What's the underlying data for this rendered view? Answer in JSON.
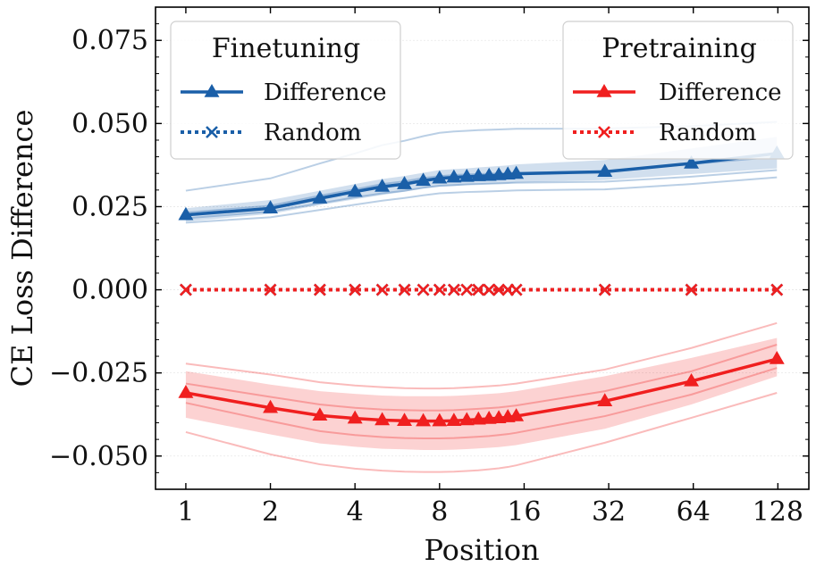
{
  "chart_data": {
    "type": "line",
    "xlabel": "Position",
    "ylabel": "CE Loss Difference",
    "x_scale": "log2",
    "xlim": [
      0.78,
      165
    ],
    "ylim": [
      -0.06,
      0.085
    ],
    "x_tick_values": [
      1,
      2,
      4,
      8,
      16,
      32,
      64,
      128
    ],
    "x_tick_labels": [
      "1",
      "2",
      "4",
      "8",
      "16",
      "32",
      "64",
      "128"
    ],
    "y_tick_values": [
      0.075,
      0.05,
      0.025,
      0.0,
      -0.025,
      -0.05
    ],
    "y_tick_labels": [
      "0.075",
      "0.050",
      "0.025",
      "0.000",
      "−0.025",
      "−0.050"
    ],
    "x": [
      1,
      2,
      3,
      4,
      5,
      6,
      7,
      8,
      9,
      10,
      11,
      12,
      13,
      14,
      15,
      31,
      63,
      127
    ],
    "series": [
      {
        "name": "Difference",
        "group": "Finetuning",
        "color": "#1a5fa8",
        "style": "solid",
        "marker": "triangle",
        "values": [
          0.0225,
          0.0245,
          0.0275,
          0.0295,
          0.031,
          0.0318,
          0.0328,
          0.0335,
          0.0338,
          0.034,
          0.0342,
          0.0343,
          0.0345,
          0.0347,
          0.0349,
          0.0355,
          0.038,
          0.041
        ],
        "band_lower": [
          0.0205,
          0.0228,
          0.0255,
          0.0272,
          0.0285,
          0.0295,
          0.0305,
          0.031,
          0.0312,
          0.0315,
          0.0317,
          0.0318,
          0.0319,
          0.032,
          0.0322,
          0.033,
          0.0348,
          0.0365
        ],
        "band_upper": [
          0.0245,
          0.027,
          0.0298,
          0.0318,
          0.0333,
          0.0342,
          0.0352,
          0.036,
          0.0363,
          0.0365,
          0.0368,
          0.037,
          0.0372,
          0.0374,
          0.0377,
          0.039,
          0.0425,
          0.046
        ],
        "runs": [
          [
            0.0298,
            0.0335,
            0.038,
            0.041,
            0.0435,
            0.0448,
            0.0462,
            0.0472,
            0.0476,
            0.0478,
            0.048,
            0.0481,
            0.0482,
            0.0483,
            0.0484,
            0.0485,
            0.0492,
            0.0505
          ],
          [
            0.0232,
            0.0253,
            0.0283,
            0.0302,
            0.0318,
            0.0326,
            0.0336,
            0.0342,
            0.0345,
            0.0347,
            0.0348,
            0.0349,
            0.035,
            0.0351,
            0.0352,
            0.0356,
            0.0378,
            0.04
          ],
          [
            0.0215,
            0.0235,
            0.026,
            0.0278,
            0.029,
            0.0298,
            0.0307,
            0.0313,
            0.0315,
            0.0317,
            0.0318,
            0.0319,
            0.032,
            0.0321,
            0.0322,
            0.0325,
            0.034,
            0.036
          ],
          [
            0.0202,
            0.0218,
            0.024,
            0.0256,
            0.0268,
            0.0276,
            0.0284,
            0.029,
            0.0292,
            0.0294,
            0.0295,
            0.0296,
            0.0297,
            0.0298,
            0.0299,
            0.0302,
            0.0318,
            0.0338
          ]
        ]
      },
      {
        "name": "Random",
        "group": "Finetuning",
        "color": "#1a5fa8",
        "style": "dotted",
        "marker": "x",
        "values": [
          0,
          0,
          0,
          0,
          0,
          0,
          0,
          0,
          0,
          0,
          0,
          0,
          0,
          0,
          0,
          0,
          0,
          0
        ]
      },
      {
        "name": "Difference",
        "group": "Pretraining",
        "color": "#f01f1f",
        "style": "solid",
        "marker": "triangle",
        "values": [
          -0.031,
          -0.0355,
          -0.0378,
          -0.0387,
          -0.0392,
          -0.0394,
          -0.0395,
          -0.0395,
          -0.0394,
          -0.0392,
          -0.039,
          -0.0388,
          -0.0386,
          -0.0383,
          -0.038,
          -0.0335,
          -0.0275,
          -0.0208
        ],
        "band_lower": [
          -0.0385,
          -0.0435,
          -0.0462,
          -0.0472,
          -0.0478,
          -0.048,
          -0.0482,
          -0.0482,
          -0.0481,
          -0.0479,
          -0.0477,
          -0.0475,
          -0.0473,
          -0.047,
          -0.0467,
          -0.0418,
          -0.0345,
          -0.026
        ],
        "band_upper": [
          -0.0245,
          -0.0285,
          -0.0305,
          -0.0313,
          -0.0318,
          -0.032,
          -0.032,
          -0.032,
          -0.0319,
          -0.0317,
          -0.0315,
          -0.0313,
          -0.0311,
          -0.0308,
          -0.0305,
          -0.026,
          -0.0205,
          -0.0145
        ],
        "runs": [
          [
            -0.0222,
            -0.0255,
            -0.0278,
            -0.0288,
            -0.0293,
            -0.0296,
            -0.0297,
            -0.0297,
            -0.0296,
            -0.0294,
            -0.0292,
            -0.029,
            -0.0288,
            -0.0285,
            -0.0282,
            -0.024,
            -0.0175,
            -0.01
          ],
          [
            -0.0282,
            -0.0322,
            -0.0345,
            -0.0355,
            -0.036,
            -0.0362,
            -0.0363,
            -0.0363,
            -0.0362,
            -0.036,
            -0.0358,
            -0.0356,
            -0.0354,
            -0.0351,
            -0.0348,
            -0.0305,
            -0.0245,
            -0.0165
          ],
          [
            -0.034,
            -0.0395,
            -0.0425,
            -0.0437,
            -0.0443,
            -0.0446,
            -0.0447,
            -0.0447,
            -0.0446,
            -0.0444,
            -0.0442,
            -0.044,
            -0.0437,
            -0.0434,
            -0.043,
            -0.038,
            -0.0315,
            -0.0235
          ],
          [
            -0.0428,
            -0.0495,
            -0.0525,
            -0.0538,
            -0.0544,
            -0.0547,
            -0.0548,
            -0.0548,
            -0.0547,
            -0.0545,
            -0.0543,
            -0.054,
            -0.0537,
            -0.0533,
            -0.0528,
            -0.046,
            -0.0385,
            -0.031
          ]
        ]
      },
      {
        "name": "Random",
        "group": "Pretraining",
        "color": "#f01f1f",
        "style": "dotted",
        "marker": "x",
        "values": [
          0,
          0,
          0,
          0,
          0,
          0,
          0,
          0,
          0,
          0,
          0,
          0,
          0,
          0,
          0,
          0,
          0,
          0
        ]
      }
    ],
    "legends": [
      {
        "title": "Finetuning",
        "placement": "top-left",
        "entries": [
          "Difference",
          "Random"
        ]
      },
      {
        "title": "Pretraining",
        "placement": "top-right",
        "entries": [
          "Difference",
          "Random"
        ]
      }
    ]
  }
}
